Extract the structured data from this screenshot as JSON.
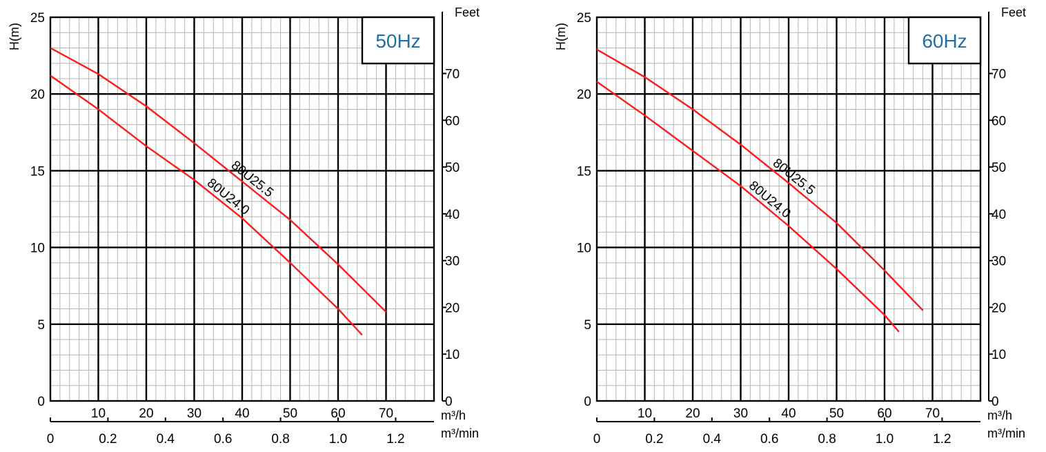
{
  "chart_data": [
    {
      "type": "line",
      "panel": "50Hz",
      "badge": "50Hz",
      "ylabel": "H(m)",
      "ylabel_right": "Feet",
      "xlabel": "m³/h",
      "xlabel_secondary": "m³/min",
      "xlim": [
        0,
        80
      ],
      "ylim": [
        0,
        25
      ],
      "grid": true,
      "x_ticks": [
        10,
        20,
        30,
        40,
        50,
        60,
        70
      ],
      "y_ticks": [
        0,
        5,
        10,
        15,
        20,
        25
      ],
      "feet_ticks": [
        0,
        10,
        20,
        30,
        40,
        50,
        60,
        70
      ],
      "min_ticks": [
        "0",
        "0.2",
        "0.4",
        "0.6",
        "0.8",
        "1.0",
        "1.2"
      ],
      "series": [
        {
          "name": "80U25.5",
          "x": [
            0,
            10,
            20,
            30,
            40,
            50,
            60,
            70
          ],
          "y": [
            23.0,
            21.3,
            19.2,
            16.8,
            14.3,
            11.8,
            8.9,
            5.8
          ],
          "label_at": 37
        },
        {
          "name": "80U24.0",
          "x": [
            0,
            10,
            20,
            30,
            40,
            50,
            60,
            65
          ],
          "y": [
            21.2,
            19.0,
            16.6,
            14.4,
            11.9,
            9.0,
            6.0,
            4.3
          ],
          "label_at": 32
        }
      ]
    },
    {
      "type": "line",
      "panel": "60Hz",
      "badge": "60Hz",
      "ylabel": "H(m)",
      "ylabel_right": "Feet",
      "xlabel": "m³/h",
      "xlabel_secondary": "m³/min",
      "xlim": [
        0,
        80
      ],
      "ylim": [
        0,
        25
      ],
      "grid": true,
      "x_ticks": [
        10,
        20,
        30,
        40,
        50,
        60,
        70
      ],
      "y_ticks": [
        0,
        5,
        10,
        15,
        20,
        25
      ],
      "feet_ticks": [
        0,
        10,
        20,
        30,
        40,
        50,
        60,
        70
      ],
      "min_ticks": [
        "0",
        "0.2",
        "0.4",
        "0.6",
        "0.8",
        "1.0",
        "1.2"
      ],
      "series": [
        {
          "name": "80U25.5",
          "x": [
            0,
            10,
            20,
            30,
            40,
            50,
            60,
            68
          ],
          "y": [
            22.9,
            21.1,
            19.0,
            16.7,
            14.2,
            11.6,
            8.5,
            5.9
          ],
          "label_at": 36
        },
        {
          "name": "80U24.0",
          "x": [
            0,
            10,
            20,
            30,
            40,
            50,
            60,
            63
          ],
          "y": [
            20.8,
            18.6,
            16.3,
            14.0,
            11.4,
            8.6,
            5.6,
            4.5
          ],
          "label_at": 31
        }
      ]
    }
  ],
  "colors": {
    "curve": "#ff1a1a",
    "grid_minor": "#b5b5b5",
    "grid_major": "#000000",
    "badge_text": "#1f6ea8"
  }
}
